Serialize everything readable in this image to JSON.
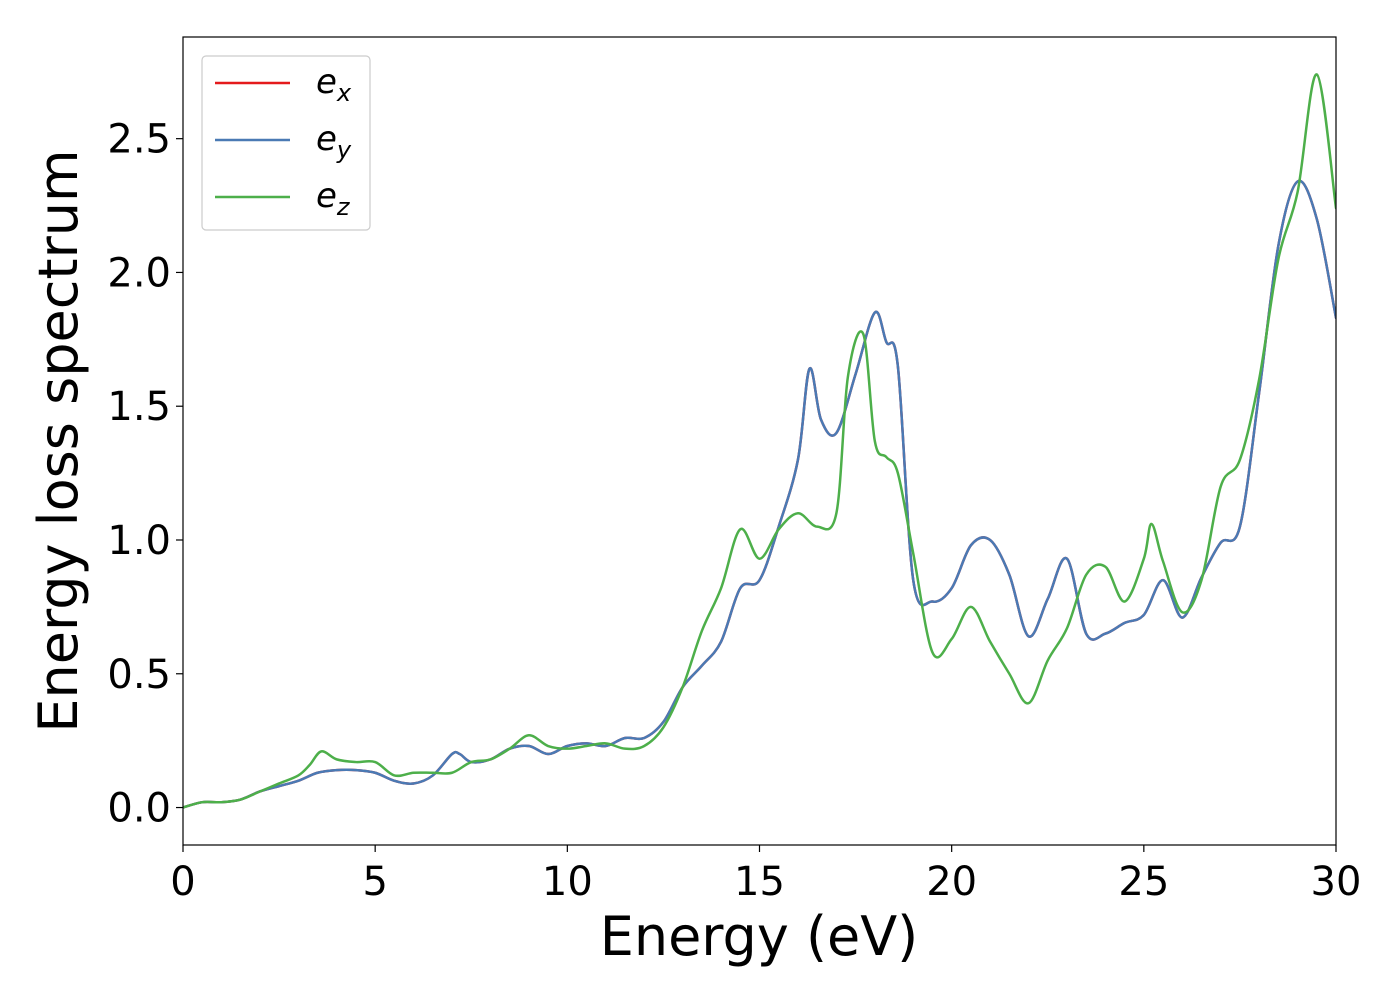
{
  "chart_data": {
    "type": "line",
    "xlabel": "Energy (eV)",
    "ylabel": "Energy loss spectrum",
    "xlim": [
      0,
      30
    ],
    "ylim": [
      -0.14,
      2.88
    ],
    "xticks": [
      0,
      5,
      10,
      15,
      20,
      25,
      30
    ],
    "xtick_labels": [
      "0",
      "5",
      "10",
      "15",
      "20",
      "25",
      "30"
    ],
    "yticks": [
      0.0,
      0.5,
      1.0,
      1.5,
      2.0,
      2.5
    ],
    "ytick_labels": [
      "0.0",
      "0.5",
      "1.0",
      "1.5",
      "2.0",
      "2.5"
    ],
    "grid": false,
    "legend_position": "top-left",
    "series": [
      {
        "name": "e",
        "subscript": "x",
        "color": "#e41a1c",
        "x": [
          0,
          0.5,
          1,
          1.5,
          2,
          2.5,
          3,
          3.5,
          4,
          4.5,
          5,
          5.5,
          6,
          6.5,
          7,
          7.2,
          7.5,
          8,
          8.5,
          9,
          9.5,
          10,
          10.5,
          11,
          11.5,
          12,
          12.5,
          13,
          13.5,
          14,
          14.5,
          15,
          15.5,
          16,
          16.3,
          16.6,
          17,
          17.5,
          18,
          18.3,
          18.6,
          19,
          19.5,
          20,
          20.5,
          21,
          21.5,
          22,
          22.5,
          23,
          23.5,
          24,
          24.5,
          25,
          25.5,
          26,
          26.5,
          27,
          27.5,
          28,
          28.5,
          29,
          29.5,
          30
        ],
        "y": [
          0.0,
          0.02,
          0.02,
          0.03,
          0.06,
          0.08,
          0.1,
          0.13,
          0.14,
          0.14,
          0.13,
          0.1,
          0.09,
          0.12,
          0.2,
          0.2,
          0.17,
          0.18,
          0.22,
          0.23,
          0.2,
          0.23,
          0.24,
          0.23,
          0.26,
          0.26,
          0.32,
          0.45,
          0.53,
          0.62,
          0.82,
          0.85,
          1.05,
          1.3,
          1.64,
          1.45,
          1.4,
          1.62,
          1.85,
          1.74,
          1.65,
          0.85,
          0.77,
          0.82,
          0.98,
          1.0,
          0.87,
          0.64,
          0.78,
          0.93,
          0.65,
          0.65,
          0.69,
          0.72,
          0.85,
          0.71,
          0.86,
          0.99,
          1.05,
          1.55,
          2.1,
          2.34,
          2.2,
          1.83
        ]
      },
      {
        "name": "e",
        "subscript": "y",
        "color": "#4a7ab4",
        "x": [
          0,
          0.5,
          1,
          1.5,
          2,
          2.5,
          3,
          3.5,
          4,
          4.5,
          5,
          5.5,
          6,
          6.5,
          7,
          7.2,
          7.5,
          8,
          8.5,
          9,
          9.5,
          10,
          10.5,
          11,
          11.5,
          12,
          12.5,
          13,
          13.5,
          14,
          14.5,
          15,
          15.5,
          16,
          16.3,
          16.6,
          17,
          17.5,
          18,
          18.3,
          18.6,
          19,
          19.5,
          20,
          20.5,
          21,
          21.5,
          22,
          22.5,
          23,
          23.5,
          24,
          24.5,
          25,
          25.5,
          26,
          26.5,
          27,
          27.5,
          28,
          28.5,
          29,
          29.5,
          30
        ],
        "y": [
          0.0,
          0.02,
          0.02,
          0.03,
          0.06,
          0.08,
          0.1,
          0.13,
          0.14,
          0.14,
          0.13,
          0.1,
          0.09,
          0.12,
          0.2,
          0.2,
          0.17,
          0.18,
          0.22,
          0.23,
          0.2,
          0.23,
          0.24,
          0.23,
          0.26,
          0.26,
          0.32,
          0.45,
          0.53,
          0.62,
          0.82,
          0.85,
          1.05,
          1.3,
          1.64,
          1.45,
          1.4,
          1.62,
          1.85,
          1.74,
          1.65,
          0.85,
          0.77,
          0.82,
          0.98,
          1.0,
          0.87,
          0.64,
          0.78,
          0.93,
          0.65,
          0.65,
          0.69,
          0.72,
          0.85,
          0.71,
          0.86,
          0.99,
          1.05,
          1.55,
          2.1,
          2.34,
          2.2,
          1.83
        ]
      },
      {
        "name": "e",
        "subscript": "z",
        "color": "#4daf4a",
        "x": [
          0,
          0.5,
          1,
          1.5,
          2,
          2.5,
          3,
          3.3,
          3.6,
          4,
          4.5,
          5,
          5.5,
          6,
          6.5,
          7,
          7.5,
          8,
          8.5,
          9,
          9.5,
          10,
          10.5,
          11,
          11.5,
          12,
          12.5,
          13,
          13.5,
          14,
          14.5,
          15,
          15.5,
          16,
          16.5,
          17,
          17.3,
          17.7,
          18,
          18.3,
          18.6,
          19,
          19.5,
          20,
          20.5,
          21,
          21.5,
          22,
          22.5,
          23,
          23.5,
          24,
          24.5,
          25,
          25.2,
          25.5,
          26,
          26.5,
          27,
          27.5,
          28,
          28.5,
          29,
          29.5,
          30
        ],
        "y": [
          0.0,
          0.02,
          0.02,
          0.03,
          0.06,
          0.09,
          0.12,
          0.16,
          0.21,
          0.18,
          0.17,
          0.17,
          0.12,
          0.13,
          0.13,
          0.13,
          0.17,
          0.18,
          0.22,
          0.27,
          0.23,
          0.22,
          0.23,
          0.24,
          0.22,
          0.23,
          0.3,
          0.45,
          0.66,
          0.82,
          1.04,
          0.93,
          1.04,
          1.1,
          1.05,
          1.1,
          1.61,
          1.77,
          1.37,
          1.31,
          1.25,
          0.95,
          0.58,
          0.63,
          0.75,
          0.62,
          0.5,
          0.39,
          0.55,
          0.67,
          0.87,
          0.9,
          0.77,
          0.93,
          1.06,
          0.92,
          0.73,
          0.85,
          1.2,
          1.3,
          1.6,
          2.05,
          2.3,
          2.74,
          2.24
        ]
      }
    ]
  }
}
